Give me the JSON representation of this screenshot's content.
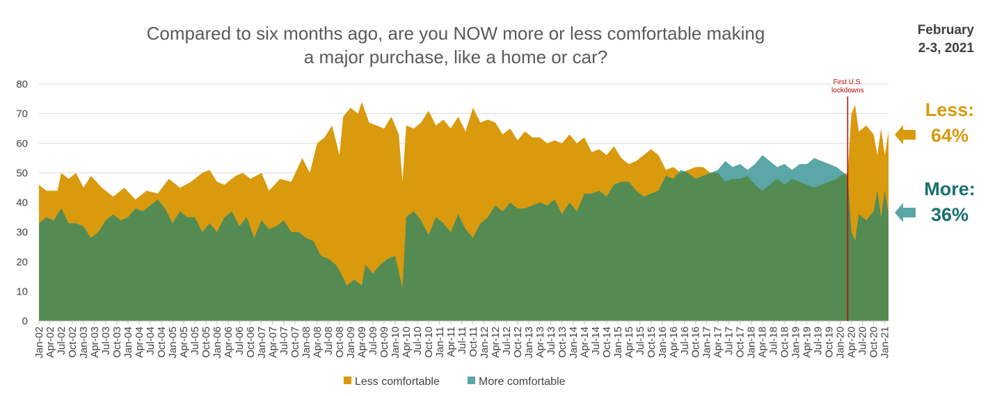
{
  "chart_data": {
    "type": "area",
    "title_line1": "Compared to six months ago, are you NOW more or less comfortable making",
    "title_line2": "a major purchase, like a home or car?",
    "survey_date_line1": "February",
    "survey_date_line2": "2-3, 2021",
    "ylim": [
      0,
      80
    ],
    "yticks": [
      0,
      10,
      20,
      30,
      40,
      50,
      60,
      70,
      80
    ],
    "grid": true,
    "legend_position": "bottom",
    "x_range": [
      "Jan-02",
      "Feb-21"
    ],
    "x_tick_labels": [
      "Jan-02",
      "Apr-02",
      "Jul-02",
      "Oct-02",
      "Jan-03",
      "Apr-03",
      "Jul-03",
      "Oct-03",
      "Jan-04",
      "Apr-04",
      "Jul-04",
      "Oct-04",
      "Jan-05",
      "Apr-05",
      "Jul-05",
      "Oct-05",
      "Jan-06",
      "Apr-06",
      "Jul-06",
      "Oct-06",
      "Jan-07",
      "Apr-07",
      "Jul-07",
      "Oct-07",
      "Jan-08",
      "Apr-08",
      "Jul-08",
      "Oct-08",
      "Jan-09",
      "Apr-09",
      "Jul-09",
      "Oct-09",
      "Jan-10",
      "Apr-10",
      "Jul-10",
      "Oct-10",
      "Jan-11",
      "Apr-11",
      "Jul-11",
      "Oct-11",
      "Jan-12",
      "Apr-12",
      "Jul-12",
      "Oct-12",
      "Jan-13",
      "Apr-13",
      "Jul-13",
      "Oct-13",
      "Jan-14",
      "Apr-14",
      "Jul-14",
      "Oct-14",
      "Jan-15",
      "Apr-15",
      "Jul-15",
      "Oct-15",
      "Jan-16",
      "Apr-16",
      "Jul-16",
      "Oct-16",
      "Jan-17",
      "Apr-17",
      "Jul-17",
      "Oct-17",
      "Jan-18",
      "Apr-18",
      "Jul-18",
      "Oct-18",
      "Jan-19",
      "Apr-19",
      "Jul-19",
      "Oct-19",
      "Jan-20",
      "Apr-20",
      "Jul-20",
      "Oct-20",
      "Jan-21"
    ],
    "series": [
      {
        "name": "Less comfortable",
        "color": "#D99A0E",
        "points": [
          [
            "Jan-02",
            46
          ],
          [
            "Mar-02",
            44
          ],
          [
            "Jun-02",
            44
          ],
          [
            "Jul-02",
            50
          ],
          [
            "Sep-02",
            48
          ],
          [
            "Nov-02",
            50
          ],
          [
            "Jan-03",
            45
          ],
          [
            "Mar-03",
            49
          ],
          [
            "Jun-03",
            45
          ],
          [
            "Sep-03",
            42
          ],
          [
            "Dec-03",
            45
          ],
          [
            "Mar-04",
            41
          ],
          [
            "Jun-04",
            44
          ],
          [
            "Sep-04",
            43
          ],
          [
            "Dec-04",
            48
          ],
          [
            "Mar-05",
            45
          ],
          [
            "Jun-05",
            47
          ],
          [
            "Sep-05",
            50
          ],
          [
            "Nov-05",
            51
          ],
          [
            "Jan-06",
            47
          ],
          [
            "Mar-06",
            46
          ],
          [
            "Jun-06",
            49
          ],
          [
            "Aug-06",
            50
          ],
          [
            "Oct-06",
            48
          ],
          [
            "Jan-07",
            50
          ],
          [
            "Mar-07",
            44
          ],
          [
            "Jun-07",
            48
          ],
          [
            "Sep-07",
            47
          ],
          [
            "Dec-07",
            55
          ],
          [
            "Feb-08",
            50
          ],
          [
            "Apr-08",
            60
          ],
          [
            "Jun-08",
            62
          ],
          [
            "Aug-08",
            66
          ],
          [
            "Oct-08",
            56
          ],
          [
            "Nov-08",
            69
          ],
          [
            "Jan-09",
            72
          ],
          [
            "Mar-09",
            70
          ],
          [
            "Apr-09",
            74
          ],
          [
            "Jun-09",
            67
          ],
          [
            "Aug-09",
            66
          ],
          [
            "Oct-09",
            65
          ],
          [
            "Dec-09",
            69
          ],
          [
            "Feb-10",
            63
          ],
          [
            "Mar-10",
            47
          ],
          [
            "Apr-10",
            66
          ],
          [
            "Jun-10",
            65
          ],
          [
            "Aug-10",
            67
          ],
          [
            "Oct-10",
            71
          ],
          [
            "Dec-10",
            66
          ],
          [
            "Feb-11",
            68
          ],
          [
            "Apr-11",
            65
          ],
          [
            "Jun-11",
            69
          ],
          [
            "Aug-11",
            64
          ],
          [
            "Oct-11",
            72
          ],
          [
            "Dec-11",
            67
          ],
          [
            "Feb-12",
            68
          ],
          [
            "Apr-12",
            67
          ],
          [
            "Jun-12",
            63
          ],
          [
            "Aug-12",
            65
          ],
          [
            "Oct-12",
            61
          ],
          [
            "Dec-12",
            64
          ],
          [
            "Feb-13",
            62
          ],
          [
            "Apr-13",
            62
          ],
          [
            "Jun-13",
            60
          ],
          [
            "Aug-13",
            61
          ],
          [
            "Oct-13",
            60
          ],
          [
            "Dec-13",
            63
          ],
          [
            "Feb-14",
            60
          ],
          [
            "Apr-14",
            62
          ],
          [
            "Jun-14",
            57
          ],
          [
            "Aug-14",
            58
          ],
          [
            "Oct-14",
            56
          ],
          [
            "Dec-14",
            59
          ],
          [
            "Feb-15",
            55
          ],
          [
            "Apr-15",
            53
          ],
          [
            "Jun-15",
            54
          ],
          [
            "Aug-15",
            56
          ],
          [
            "Oct-15",
            58
          ],
          [
            "Dec-15",
            56
          ],
          [
            "Feb-16",
            51
          ],
          [
            "Apr-16",
            52
          ],
          [
            "Jun-16",
            50
          ],
          [
            "Aug-16",
            51
          ],
          [
            "Oct-16",
            52
          ],
          [
            "Dec-16",
            52
          ],
          [
            "Feb-17",
            50
          ],
          [
            "Apr-17",
            50
          ],
          [
            "Jun-17",
            47
          ],
          [
            "Aug-17",
            48
          ],
          [
            "Oct-17",
            48
          ],
          [
            "Dec-17",
            49
          ],
          [
            "Feb-18",
            46
          ],
          [
            "Apr-18",
            44
          ],
          [
            "Jun-18",
            46
          ],
          [
            "Aug-18",
            48
          ],
          [
            "Oct-18",
            46
          ],
          [
            "Dec-18",
            48
          ],
          [
            "Feb-19",
            47
          ],
          [
            "Apr-19",
            46
          ],
          [
            "Jun-19",
            45
          ],
          [
            "Aug-19",
            46
          ],
          [
            "Oct-19",
            47
          ],
          [
            "Dec-19",
            48
          ],
          [
            "Jan-20",
            49
          ],
          [
            "Mar-20",
            50
          ],
          [
            "Apr-20",
            70
          ],
          [
            "May-20",
            73
          ],
          [
            "Jun-20",
            64
          ],
          [
            "Aug-20",
            66
          ],
          [
            "Oct-20",
            63
          ],
          [
            "Nov-20",
            56
          ],
          [
            "Dec-20",
            65
          ],
          [
            "Jan-21",
            56
          ],
          [
            "Feb-21",
            64
          ]
        ]
      },
      {
        "name": "More comfortable",
        "color": "#5BA6A6",
        "points": [
          [
            "Jan-02",
            33
          ],
          [
            "Mar-02",
            35
          ],
          [
            "May-02",
            34
          ],
          [
            "Jul-02",
            38
          ],
          [
            "Sep-02",
            33
          ],
          [
            "Nov-02",
            33
          ],
          [
            "Jan-03",
            32
          ],
          [
            "Mar-03",
            28
          ],
          [
            "May-03",
            30
          ],
          [
            "Jul-03",
            34
          ],
          [
            "Sep-03",
            36
          ],
          [
            "Nov-03",
            34
          ],
          [
            "Jan-04",
            35
          ],
          [
            "Mar-04",
            38
          ],
          [
            "May-04",
            37
          ],
          [
            "Jul-04",
            39
          ],
          [
            "Sep-04",
            41
          ],
          [
            "Nov-04",
            38
          ],
          [
            "Jan-05",
            33
          ],
          [
            "Mar-05",
            37
          ],
          [
            "May-05",
            35
          ],
          [
            "Jul-05",
            35
          ],
          [
            "Sep-05",
            30
          ],
          [
            "Nov-05",
            33
          ],
          [
            "Jan-06",
            30
          ],
          [
            "Mar-06",
            35
          ],
          [
            "May-06",
            37
          ],
          [
            "Jul-06",
            32
          ],
          [
            "Sep-06",
            35
          ],
          [
            "Nov-06",
            28
          ],
          [
            "Jan-07",
            34
          ],
          [
            "Mar-07",
            31
          ],
          [
            "May-07",
            32
          ],
          [
            "Jul-07",
            34
          ],
          [
            "Sep-07",
            30
          ],
          [
            "Nov-07",
            30
          ],
          [
            "Jan-08",
            28
          ],
          [
            "Mar-08",
            27
          ],
          [
            "May-08",
            22
          ],
          [
            "Jul-08",
            21
          ],
          [
            "Sep-08",
            19
          ],
          [
            "Oct-08",
            17
          ],
          [
            "Dec-08",
            12
          ],
          [
            "Feb-09",
            14
          ],
          [
            "Apr-09",
            12
          ],
          [
            "May-09",
            19
          ],
          [
            "Jul-09",
            16
          ],
          [
            "Sep-09",
            19
          ],
          [
            "Nov-09",
            21
          ],
          [
            "Jan-10",
            22
          ],
          [
            "Mar-10",
            11
          ],
          [
            "Apr-10",
            35
          ],
          [
            "Jun-10",
            37
          ],
          [
            "Aug-10",
            34
          ],
          [
            "Oct-10",
            29
          ],
          [
            "Dec-10",
            35
          ],
          [
            "Feb-11",
            33
          ],
          [
            "Apr-11",
            30
          ],
          [
            "Jun-11",
            36
          ],
          [
            "Aug-11",
            31
          ],
          [
            "Oct-11",
            28
          ],
          [
            "Dec-11",
            33
          ],
          [
            "Feb-12",
            35
          ],
          [
            "Apr-12",
            39
          ],
          [
            "Jun-12",
            37
          ],
          [
            "Aug-12",
            40
          ],
          [
            "Oct-12",
            38
          ],
          [
            "Dec-12",
            38
          ],
          [
            "Feb-13",
            39
          ],
          [
            "Apr-13",
            40
          ],
          [
            "Jun-13",
            39
          ],
          [
            "Aug-13",
            41
          ],
          [
            "Oct-13",
            36
          ],
          [
            "Dec-13",
            40
          ],
          [
            "Feb-14",
            37
          ],
          [
            "Apr-14",
            43
          ],
          [
            "Jun-14",
            43
          ],
          [
            "Aug-14",
            44
          ],
          [
            "Oct-14",
            42
          ],
          [
            "Dec-14",
            46
          ],
          [
            "Feb-15",
            47
          ],
          [
            "Apr-15",
            47
          ],
          [
            "Jun-15",
            44
          ],
          [
            "Aug-15",
            42
          ],
          [
            "Oct-15",
            43
          ],
          [
            "Dec-15",
            44
          ],
          [
            "Feb-16",
            49
          ],
          [
            "Apr-16",
            48
          ],
          [
            "Jun-16",
            51
          ],
          [
            "Aug-16",
            50
          ],
          [
            "Oct-16",
            48
          ],
          [
            "Dec-16",
            49
          ],
          [
            "Feb-17",
            50
          ],
          [
            "Apr-17",
            51
          ],
          [
            "Jun-17",
            54
          ],
          [
            "Aug-17",
            52
          ],
          [
            "Oct-17",
            53
          ],
          [
            "Dec-17",
            51
          ],
          [
            "Feb-18",
            53
          ],
          [
            "Apr-18",
            56
          ],
          [
            "Jun-18",
            54
          ],
          [
            "Aug-18",
            52
          ],
          [
            "Oct-18",
            53
          ],
          [
            "Dec-18",
            51
          ],
          [
            "Feb-19",
            53
          ],
          [
            "Apr-19",
            53
          ],
          [
            "Jun-19",
            55
          ],
          [
            "Aug-19",
            54
          ],
          [
            "Oct-19",
            53
          ],
          [
            "Dec-19",
            52
          ],
          [
            "Jan-20",
            51
          ],
          [
            "Mar-20",
            49
          ],
          [
            "Apr-20",
            30
          ],
          [
            "May-20",
            27
          ],
          [
            "Jun-20",
            36
          ],
          [
            "Aug-20",
            34
          ],
          [
            "Oct-20",
            37
          ],
          [
            "Nov-20",
            44
          ],
          [
            "Dec-20",
            35
          ],
          [
            "Jan-21",
            44
          ],
          [
            "Feb-21",
            36
          ]
        ]
      }
    ],
    "annotation": {
      "label_line1": "First U.S.",
      "label_line2": "lockdowns",
      "at": "Mar-20",
      "color": "#C00000"
    },
    "callouts": {
      "less_label": "Less:",
      "less_value": "64%",
      "less_color": "#D99A0E",
      "more_label": "More:",
      "more_value": "36%",
      "more_color": "#17706E",
      "arrow_less_color": "#D99A0E",
      "arrow_more_color": "#5BA6A6"
    },
    "overlap_color": "#548B52"
  }
}
